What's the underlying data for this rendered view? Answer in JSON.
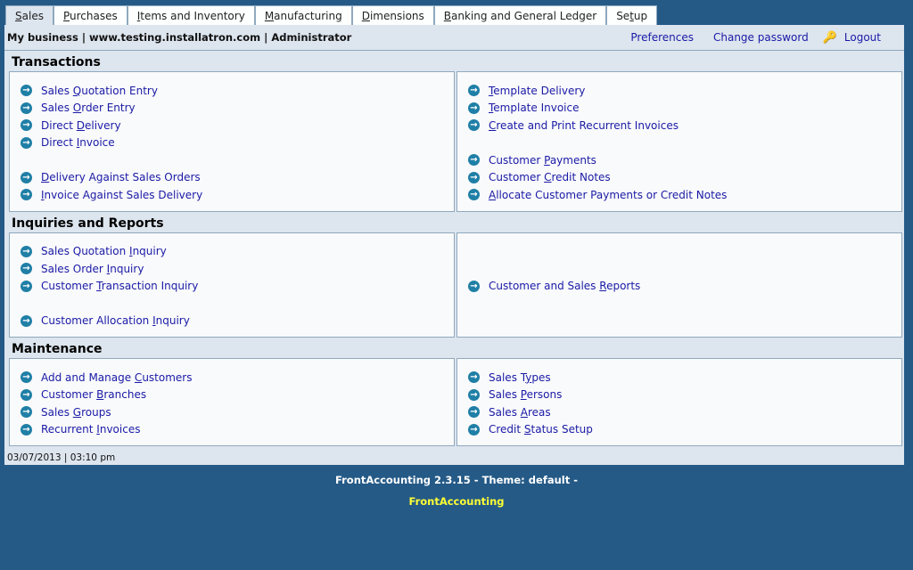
{
  "tabs": [
    {
      "pre": "",
      "key": "S",
      "post": "ales",
      "active": true
    },
    {
      "pre": "",
      "key": "P",
      "post": "urchases"
    },
    {
      "pre": "",
      "key": "I",
      "post": "tems and Inventory"
    },
    {
      "pre": "",
      "key": "M",
      "post": "anufacturing"
    },
    {
      "pre": "",
      "key": "D",
      "post": "imensions"
    },
    {
      "pre": "",
      "key": "B",
      "post": "anking and General Ledger"
    },
    {
      "pre": "Se",
      "key": "t",
      "post": "up"
    }
  ],
  "header": {
    "business": "My business | www.testing.installatron.com | Administrator",
    "preferences": "Preferences",
    "change_password": "Change password",
    "logout": "Logout",
    "logout_icon": "key-icon"
  },
  "sections": [
    {
      "title": "Transactions",
      "left": [
        {
          "pre": "Sales ",
          "key": "Q",
          "post": "uotation Entry"
        },
        {
          "pre": "Sales ",
          "key": "O",
          "post": "rder Entry"
        },
        {
          "pre": "Direct ",
          "key": "D",
          "post": "elivery"
        },
        {
          "pre": "Direct ",
          "key": "I",
          "post": "nvoice"
        },
        null,
        {
          "pre": "",
          "key": "D",
          "post": "elivery Against Sales Orders"
        },
        {
          "pre": "",
          "key": "I",
          "post": "nvoice Against Sales Delivery"
        }
      ],
      "right": [
        {
          "pre": "",
          "key": "T",
          "post": "emplate Delivery"
        },
        {
          "pre": "",
          "key": "T",
          "post": "emplate Invoice"
        },
        {
          "pre": "",
          "key": "C",
          "post": "reate and Print Recurrent Invoices"
        },
        null,
        {
          "pre": "Customer ",
          "key": "P",
          "post": "ayments"
        },
        {
          "pre": "Customer ",
          "key": "C",
          "post": "redit Notes"
        },
        {
          "pre": "",
          "key": "A",
          "post": "llocate Customer Payments or Credit Notes"
        }
      ]
    },
    {
      "title": "Inquiries and Reports",
      "left": [
        {
          "pre": "Sales Quotation ",
          "key": "I",
          "post": "nquiry"
        },
        {
          "pre": "Sales Order ",
          "key": "I",
          "post": "nquiry"
        },
        {
          "pre": "Customer ",
          "key": "T",
          "post": "ransaction Inquiry"
        },
        null,
        {
          "pre": "Customer Allocation ",
          "key": "I",
          "post": "nquiry"
        }
      ],
      "right": [
        null,
        null,
        {
          "pre": "Customer and Sales ",
          "key": "R",
          "post": "eports"
        }
      ]
    },
    {
      "title": "Maintenance",
      "left": [
        {
          "pre": "Add and Manage ",
          "key": "C",
          "post": "ustomers"
        },
        {
          "pre": "Customer ",
          "key": "B",
          "post": "ranches"
        },
        {
          "pre": "Sales ",
          "key": "G",
          "post": "roups"
        },
        {
          "pre": "Recurrent ",
          "key": "I",
          "post": "nvoices"
        }
      ],
      "right": [
        {
          "pre": "Sales T",
          "key": "y",
          "post": "pes"
        },
        {
          "pre": "Sales ",
          "key": "P",
          "post": "ersons"
        },
        {
          "pre": "Sales ",
          "key": "A",
          "post": "reas"
        },
        {
          "pre": "Credit ",
          "key": "S",
          "post": "tatus Setup"
        }
      ]
    }
  ],
  "datetime": "03/07/2013 | 03:10 pm",
  "footer": {
    "version": "FrontAccounting 2.3.15 - Theme: default -",
    "link": "FrontAccounting"
  },
  "colors": {
    "background": "#255a87",
    "panel": "#dde5ee",
    "link": "#1a1aa6",
    "icon": "#1f7fa6",
    "footer_link": "#ffff33"
  }
}
